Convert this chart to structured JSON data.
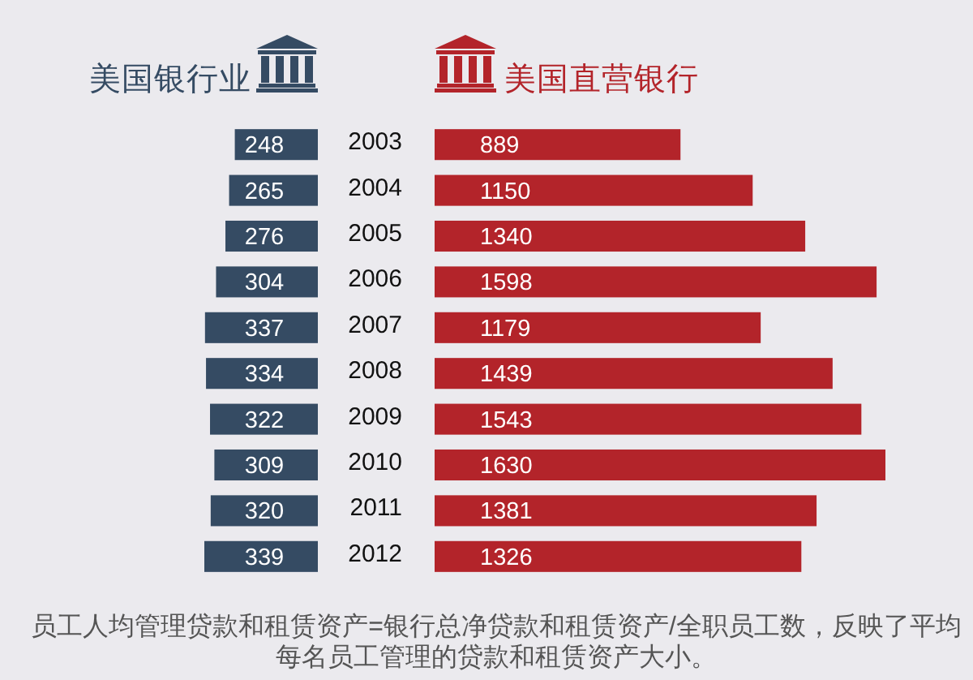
{
  "chart_data": [
    {
      "type": "bar",
      "orientation": "horizontal",
      "title": "美国银行业",
      "categories": [
        "2003",
        "2004",
        "2005",
        "2006",
        "2007",
        "2008",
        "2009",
        "2010",
        "2011",
        "2012"
      ],
      "values": [
        248,
        265,
        276,
        304,
        337,
        334,
        322,
        309,
        320,
        339
      ],
      "color": "#354b63",
      "tick_labels": false,
      "data_labels": true,
      "annotations": [
        "员工人均管理贷款和租赁资产=银行总净贷款和租赁资产/全职员工数，反映了平均每名员工管理的贷款和租赁资产大小。"
      ]
    },
    {
      "type": "bar",
      "orientation": "horizontal",
      "title": "美国直营银行",
      "categories": [
        "2003",
        "2004",
        "2005",
        "2006",
        "2007",
        "2008",
        "2009",
        "2010",
        "2011",
        "2012"
      ],
      "values": [
        889,
        1150,
        1340,
        1598,
        1179,
        1439,
        1543,
        1630,
        1381,
        1326
      ],
      "color": "#b3242a",
      "tick_labels": "y",
      "data_labels": true
    }
  ]
}
